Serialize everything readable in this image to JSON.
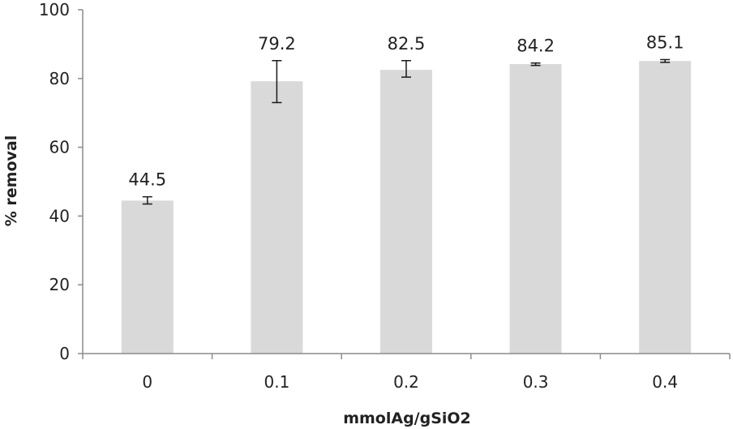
{
  "chart_data": {
    "type": "bar",
    "title": "",
    "xlabel": "mmolAg/gSiO2",
    "ylabel": "% removal",
    "categories": [
      "0",
      "0.1",
      "0.2",
      "0.3",
      "0.4"
    ],
    "values": [
      44.5,
      79.2,
      82.5,
      84.2,
      85.1
    ],
    "data_labels": [
      "44.5",
      "79.2",
      "82.5",
      "84.2",
      "85.1"
    ],
    "error": [
      {
        "low": 43.5,
        "high": 45.6
      },
      {
        "low": 73.0,
        "high": 85.2
      },
      {
        "low": 80.4,
        "high": 85.2
      },
      {
        "low": 83.8,
        "high": 84.5
      },
      {
        "low": 84.7,
        "high": 85.5
      }
    ],
    "ylim": [
      0,
      100
    ],
    "yticks": [
      0,
      20,
      40,
      60,
      80,
      100
    ],
    "grid": false,
    "legend": "none",
    "colors": {
      "bar": "#d9d9d9",
      "axis": "#8c8c8c",
      "error": "#1a1a1a"
    }
  }
}
